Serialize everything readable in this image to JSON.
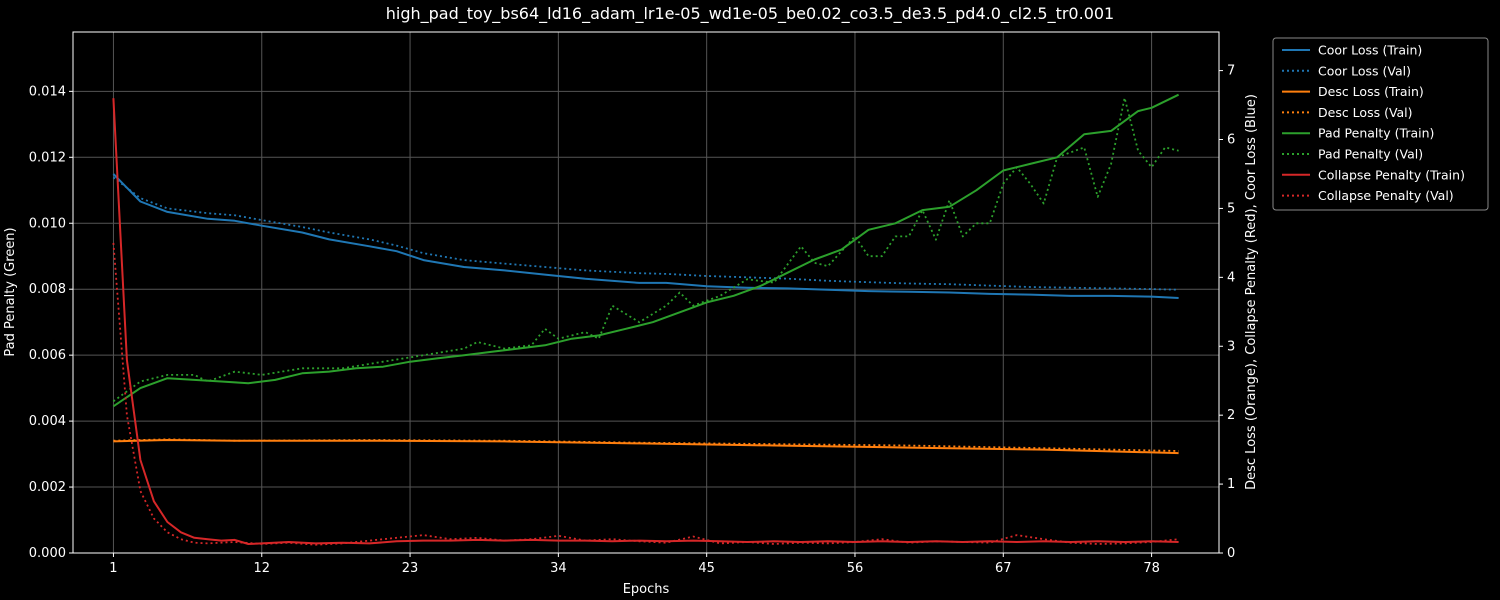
{
  "chart_data": {
    "type": "line",
    "title": "high_pad_toy_bs64_ld16_adam_lr1e-05_wd1e-05_be0.02_co3.5_de3.5_pd4.0_cl2.5_tr0.001",
    "xlabel": "Epochs",
    "ylabel_left": "Pad Penalty (Green)",
    "ylabel_right": "Desc Loss (Orange), Collapse Penalty (Red), Coor Loss (Blue)",
    "xlim": [
      -2,
      83
    ],
    "ylim_left": [
      0,
      0.0158
    ],
    "ylim_right": [
      0,
      7.56
    ],
    "x_ticks": [
      1,
      12,
      23,
      34,
      45,
      56,
      67,
      78
    ],
    "x_tick_labels": [
      "1",
      "12",
      "23",
      "34",
      "45",
      "56",
      "67",
      "78"
    ],
    "y_ticks_left": [
      0,
      0.002,
      0.004,
      0.006,
      0.008,
      0.01,
      0.012,
      0.014
    ],
    "y_tick_labels_left": [
      "0.000",
      "0.002",
      "0.004",
      "0.006",
      "0.008",
      "0.010",
      "0.012",
      "0.014"
    ],
    "y_ticks_right": [
      0,
      1,
      2,
      3,
      4,
      5,
      6,
      7
    ],
    "y_tick_labels_right": [
      "0",
      "1",
      "2",
      "3",
      "4",
      "5",
      "6",
      "7"
    ],
    "grid": true,
    "legend_position": "outside-top-right",
    "colors": {
      "coor": "#1f77b4",
      "desc": "#ff7f0e",
      "pad": "#2ca02c",
      "collapse": "#d62728",
      "background": "#000000",
      "text": "#ffffff",
      "grid": "#555555"
    },
    "series": [
      {
        "name": "Coor Loss (Train)",
        "axis": "right",
        "color": "#1f77b4",
        "style": "solid",
        "points": [
          [
            1,
            5.5
          ],
          [
            3,
            5.1
          ],
          [
            5,
            4.95
          ],
          [
            8,
            4.85
          ],
          [
            10,
            4.82
          ],
          [
            12,
            4.75
          ],
          [
            15,
            4.65
          ],
          [
            17,
            4.55
          ],
          [
            20,
            4.45
          ],
          [
            22,
            4.38
          ],
          [
            24,
            4.25
          ],
          [
            27,
            4.15
          ],
          [
            30,
            4.1
          ],
          [
            33,
            4.04
          ],
          [
            36,
            3.98
          ],
          [
            40,
            3.92
          ],
          [
            42,
            3.92
          ],
          [
            45,
            3.87
          ],
          [
            48,
            3.85
          ],
          [
            51,
            3.84
          ],
          [
            54,
            3.82
          ],
          [
            57,
            3.8
          ],
          [
            60,
            3.79
          ],
          [
            63,
            3.78
          ],
          [
            66,
            3.76
          ],
          [
            69,
            3.75
          ],
          [
            72,
            3.73
          ],
          [
            75,
            3.73
          ],
          [
            78,
            3.72
          ],
          [
            80,
            3.7
          ]
        ]
      },
      {
        "name": "Coor Loss (Val)",
        "axis": "right",
        "color": "#1f77b4",
        "style": "dotted",
        "points": [
          [
            1,
            5.45
          ],
          [
            3,
            5.15
          ],
          [
            5,
            5.0
          ],
          [
            8,
            4.93
          ],
          [
            10,
            4.9
          ],
          [
            12,
            4.83
          ],
          [
            15,
            4.73
          ],
          [
            17,
            4.65
          ],
          [
            20,
            4.55
          ],
          [
            22,
            4.46
          ],
          [
            24,
            4.35
          ],
          [
            27,
            4.25
          ],
          [
            30,
            4.2
          ],
          [
            33,
            4.15
          ],
          [
            36,
            4.1
          ],
          [
            40,
            4.06
          ],
          [
            42,
            4.05
          ],
          [
            45,
            4.02
          ],
          [
            48,
            4.0
          ],
          [
            51,
            3.98
          ],
          [
            54,
            3.95
          ],
          [
            57,
            3.93
          ],
          [
            60,
            3.91
          ],
          [
            63,
            3.9
          ],
          [
            66,
            3.88
          ],
          [
            69,
            3.86
          ],
          [
            72,
            3.85
          ],
          [
            75,
            3.84
          ],
          [
            78,
            3.83
          ],
          [
            80,
            3.82
          ]
        ]
      },
      {
        "name": "Desc Loss (Train)",
        "axis": "right",
        "color": "#ff7f0e",
        "style": "solid",
        "points": [
          [
            1,
            1.62
          ],
          [
            5,
            1.64
          ],
          [
            10,
            1.63
          ],
          [
            20,
            1.63
          ],
          [
            30,
            1.62
          ],
          [
            40,
            1.59
          ],
          [
            50,
            1.56
          ],
          [
            60,
            1.53
          ],
          [
            70,
            1.5
          ],
          [
            80,
            1.45
          ]
        ]
      },
      {
        "name": "Desc Loss (Val)",
        "axis": "right",
        "color": "#ff7f0e",
        "style": "dotted",
        "points": [
          [
            1,
            1.63
          ],
          [
            5,
            1.65
          ],
          [
            10,
            1.63
          ],
          [
            20,
            1.64
          ],
          [
            30,
            1.63
          ],
          [
            40,
            1.6
          ],
          [
            50,
            1.58
          ],
          [
            60,
            1.56
          ],
          [
            70,
            1.52
          ],
          [
            80,
            1.48
          ]
        ]
      },
      {
        "name": "Pad Penalty (Train)",
        "axis": "left",
        "color": "#2ca02c",
        "style": "solid",
        "points": [
          [
            1,
            0.00445
          ],
          [
            3,
            0.005
          ],
          [
            5,
            0.0053
          ],
          [
            7,
            0.00525
          ],
          [
            9,
            0.0052
          ],
          [
            11,
            0.00515
          ],
          [
            13,
            0.00525
          ],
          [
            15,
            0.00545
          ],
          [
            17,
            0.0055
          ],
          [
            19,
            0.0056
          ],
          [
            21,
            0.00565
          ],
          [
            23,
            0.0058
          ],
          [
            25,
            0.0059
          ],
          [
            27,
            0.006
          ],
          [
            29,
            0.0061
          ],
          [
            31,
            0.0062
          ],
          [
            33,
            0.0063
          ],
          [
            35,
            0.0065
          ],
          [
            37,
            0.0066
          ],
          [
            39,
            0.0068
          ],
          [
            41,
            0.007
          ],
          [
            43,
            0.0073
          ],
          [
            45,
            0.0076
          ],
          [
            47,
            0.0078
          ],
          [
            49,
            0.0081
          ],
          [
            51,
            0.0085
          ],
          [
            53,
            0.0089
          ],
          [
            55,
            0.0092
          ],
          [
            57,
            0.0098
          ],
          [
            59,
            0.01
          ],
          [
            61,
            0.0104
          ],
          [
            63,
            0.0105
          ],
          [
            65,
            0.011
          ],
          [
            67,
            0.0116
          ],
          [
            69,
            0.0118
          ],
          [
            71,
            0.012
          ],
          [
            73,
            0.0127
          ],
          [
            75,
            0.0128
          ],
          [
            77,
            0.0134
          ],
          [
            78,
            0.0135
          ],
          [
            80,
            0.0139
          ]
        ]
      },
      {
        "name": "Pad Penalty (Val)",
        "axis": "left",
        "color": "#2ca02c",
        "style": "dotted",
        "points": [
          [
            1,
            0.0046
          ],
          [
            3,
            0.0052
          ],
          [
            5,
            0.0054
          ],
          [
            7,
            0.0054
          ],
          [
            8,
            0.0052
          ],
          [
            10,
            0.0055
          ],
          [
            12,
            0.0054
          ],
          [
            15,
            0.0056
          ],
          [
            18,
            0.0056
          ],
          [
            21,
            0.0058
          ],
          [
            24,
            0.006
          ],
          [
            27,
            0.0062
          ],
          [
            28,
            0.0064
          ],
          [
            30,
            0.0062
          ],
          [
            32,
            0.0063
          ],
          [
            33,
            0.0068
          ],
          [
            34,
            0.0065
          ],
          [
            36,
            0.0067
          ],
          [
            37,
            0.0065
          ],
          [
            38,
            0.0075
          ],
          [
            40,
            0.007
          ],
          [
            42,
            0.0075
          ],
          [
            43,
            0.0079
          ],
          [
            44,
            0.0075
          ],
          [
            46,
            0.0078
          ],
          [
            48,
            0.0083
          ],
          [
            50,
            0.0082
          ],
          [
            52,
            0.0093
          ],
          [
            53,
            0.0088
          ],
          [
            54,
            0.0087
          ],
          [
            56,
            0.0096
          ],
          [
            57,
            0.009
          ],
          [
            58,
            0.009
          ],
          [
            59,
            0.0096
          ],
          [
            60,
            0.0096
          ],
          [
            61,
            0.0104
          ],
          [
            62,
            0.0095
          ],
          [
            63,
            0.0107
          ],
          [
            64,
            0.0096
          ],
          [
            65,
            0.01
          ],
          [
            66,
            0.01
          ],
          [
            67,
            0.0112
          ],
          [
            68,
            0.0117
          ],
          [
            69,
            0.0112
          ],
          [
            70,
            0.0106
          ],
          [
            71,
            0.012
          ],
          [
            73,
            0.0123
          ],
          [
            74,
            0.0108
          ],
          [
            75,
            0.0118
          ],
          [
            76,
            0.0138
          ],
          [
            77,
            0.0122
          ],
          [
            78,
            0.0117
          ],
          [
            79,
            0.0123
          ],
          [
            80,
            0.0122
          ]
        ]
      },
      {
        "name": "Collapse Penalty (Train)",
        "axis": "right",
        "color": "#d62728",
        "style": "solid",
        "points": [
          [
            1,
            6.6
          ],
          [
            2,
            2.8
          ],
          [
            3,
            1.35
          ],
          [
            4,
            0.75
          ],
          [
            5,
            0.45
          ],
          [
            6,
            0.3
          ],
          [
            7,
            0.22
          ],
          [
            8,
            0.2
          ],
          [
            9,
            0.18
          ],
          [
            10,
            0.19
          ],
          [
            11,
            0.13
          ],
          [
            12,
            0.14
          ],
          [
            14,
            0.16
          ],
          [
            16,
            0.14
          ],
          [
            18,
            0.15
          ],
          [
            20,
            0.14
          ],
          [
            22,
            0.17
          ],
          [
            24,
            0.18
          ],
          [
            26,
            0.18
          ],
          [
            28,
            0.19
          ],
          [
            30,
            0.18
          ],
          [
            32,
            0.19
          ],
          [
            34,
            0.18
          ],
          [
            36,
            0.18
          ],
          [
            38,
            0.17
          ],
          [
            40,
            0.18
          ],
          [
            42,
            0.17
          ],
          [
            44,
            0.18
          ],
          [
            46,
            0.17
          ],
          [
            48,
            0.16
          ],
          [
            50,
            0.17
          ],
          [
            52,
            0.16
          ],
          [
            54,
            0.17
          ],
          [
            56,
            0.16
          ],
          [
            58,
            0.17
          ],
          [
            60,
            0.16
          ],
          [
            62,
            0.17
          ],
          [
            64,
            0.16
          ],
          [
            66,
            0.17
          ],
          [
            68,
            0.16
          ],
          [
            70,
            0.17
          ],
          [
            72,
            0.16
          ],
          [
            74,
            0.17
          ],
          [
            76,
            0.16
          ],
          [
            78,
            0.17
          ],
          [
            80,
            0.16
          ]
        ]
      },
      {
        "name": "Collapse Penalty (Val)",
        "axis": "right",
        "color": "#d62728",
        "style": "dotted",
        "points": [
          [
            1,
            4.5
          ],
          [
            2,
            2.0
          ],
          [
            3,
            0.9
          ],
          [
            4,
            0.5
          ],
          [
            5,
            0.3
          ],
          [
            6,
            0.2
          ],
          [
            7,
            0.15
          ],
          [
            8,
            0.14
          ],
          [
            10,
            0.16
          ],
          [
            12,
            0.13
          ],
          [
            14,
            0.15
          ],
          [
            16,
            0.12
          ],
          [
            18,
            0.14
          ],
          [
            20,
            0.18
          ],
          [
            22,
            0.22
          ],
          [
            24,
            0.26
          ],
          [
            26,
            0.2
          ],
          [
            28,
            0.22
          ],
          [
            30,
            0.18
          ],
          [
            32,
            0.2
          ],
          [
            34,
            0.25
          ],
          [
            36,
            0.18
          ],
          [
            38,
            0.2
          ],
          [
            40,
            0.17
          ],
          [
            42,
            0.15
          ],
          [
            44,
            0.24
          ],
          [
            46,
            0.14
          ],
          [
            48,
            0.16
          ],
          [
            50,
            0.13
          ],
          [
            52,
            0.15
          ],
          [
            54,
            0.14
          ],
          [
            56,
            0.16
          ],
          [
            58,
            0.2
          ],
          [
            60,
            0.15
          ],
          [
            62,
            0.17
          ],
          [
            64,
            0.16
          ],
          [
            66,
            0.15
          ],
          [
            68,
            0.26
          ],
          [
            70,
            0.2
          ],
          [
            72,
            0.15
          ],
          [
            74,
            0.13
          ],
          [
            76,
            0.14
          ],
          [
            78,
            0.16
          ],
          [
            80,
            0.2
          ]
        ]
      }
    ]
  }
}
